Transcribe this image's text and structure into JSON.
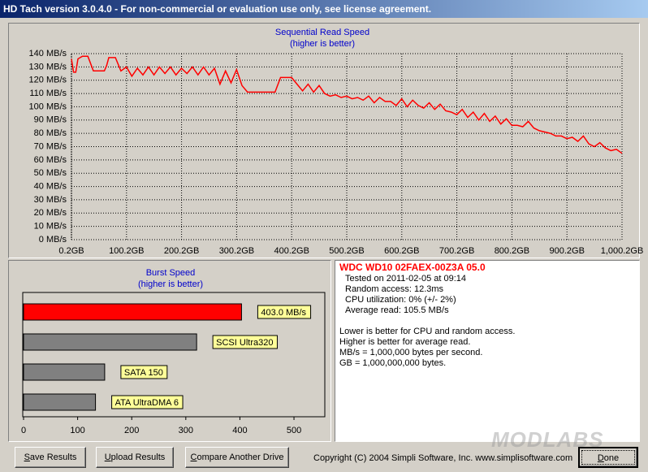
{
  "window": {
    "title": "HD Tach version 3.0.4.0  - For non-commercial or evaluation use only, see license agreement."
  },
  "chart_data": [
    {
      "type": "line",
      "title": "Sequential Read Speed",
      "subtitle": "(higher is better)",
      "x": [
        0.2,
        4,
        8,
        12,
        16,
        20,
        30,
        40,
        50,
        60,
        64,
        68,
        72,
        80,
        90,
        100,
        110,
        120,
        130,
        140,
        150,
        160,
        170,
        180,
        190,
        200,
        210,
        220,
        230,
        240,
        250,
        260,
        270,
        280,
        290,
        300,
        310,
        320,
        330,
        340,
        350,
        360,
        370,
        380,
        390,
        400,
        410,
        420,
        430,
        440,
        450,
        460,
        470,
        480,
        490,
        500,
        510,
        520,
        530,
        540,
        550,
        560,
        570,
        580,
        590,
        600,
        610,
        620,
        630,
        640,
        650,
        660,
        670,
        680,
        690,
        700,
        710,
        720,
        730,
        740,
        750,
        760,
        770,
        780,
        790,
        800,
        810,
        820,
        830,
        840,
        850,
        860,
        870,
        880,
        890,
        900,
        910,
        920,
        930,
        940,
        950,
        960,
        970,
        980,
        990,
        1000.2
      ],
      "values": [
        136,
        126,
        126,
        136,
        137,
        138,
        138,
        127,
        127,
        127,
        131,
        137,
        137,
        137,
        127,
        130,
        123,
        129,
        124,
        130,
        124,
        130,
        125,
        130,
        124,
        129,
        125,
        130,
        124,
        130,
        124,
        129,
        117,
        127,
        118,
        128,
        116,
        111,
        111,
        111,
        111,
        111,
        111,
        122,
        122,
        122,
        117,
        112,
        117,
        111,
        116,
        110,
        108,
        109,
        107,
        108,
        106,
        107,
        105,
        108,
        103,
        107,
        104,
        104,
        101,
        106,
        100,
        105,
        101,
        99,
        103,
        98,
        102,
        97,
        96,
        94,
        98,
        92,
        96,
        90,
        95,
        89,
        93,
        87,
        91,
        86,
        86,
        85,
        89,
        84,
        82,
        81,
        80,
        78,
        78,
        76,
        77,
        74,
        78,
        72,
        70,
        73,
        69,
        67,
        68,
        65
      ],
      "color": "#ff0000",
      "xlim": [
        0.2,
        1000.2
      ],
      "xticks": [
        {
          "value": 0.2,
          "label": "0.2GB"
        },
        {
          "value": 100.2,
          "label": "100.2GB"
        },
        {
          "value": 200.2,
          "label": "200.2GB"
        },
        {
          "value": 300.2,
          "label": "300.2GB"
        },
        {
          "value": 400.2,
          "label": "400.2GB"
        },
        {
          "value": 500.2,
          "label": "500.2GB"
        },
        {
          "value": 600.2,
          "label": "600.2GB"
        },
        {
          "value": 700.2,
          "label": "700.2GB"
        },
        {
          "value": 800.2,
          "label": "800.2GB"
        },
        {
          "value": 900.2,
          "label": "900.2GB"
        },
        {
          "value": 1000.2,
          "label": "1,000.2GB"
        }
      ],
      "ylim": [
        0,
        140
      ],
      "yticks": [
        {
          "value": 0,
          "label": "0 MB/s"
        },
        {
          "value": 10,
          "label": "10 MB/s"
        },
        {
          "value": 20,
          "label": "20 MB/s"
        },
        {
          "value": 30,
          "label": "30 MB/s"
        },
        {
          "value": 40,
          "label": "40 MB/s"
        },
        {
          "value": 50,
          "label": "50 MB/s"
        },
        {
          "value": 60,
          "label": "60 MB/s"
        },
        {
          "value": 70,
          "label": "70 MB/s"
        },
        {
          "value": 80,
          "label": "80 MB/s"
        },
        {
          "value": 90,
          "label": "90 MB/s"
        },
        {
          "value": 100,
          "label": "100 MB/s"
        },
        {
          "value": 110,
          "label": "110 MB/s"
        },
        {
          "value": 120,
          "label": "120 MB/s"
        },
        {
          "value": 130,
          "label": "130 MB/s"
        },
        {
          "value": 140,
          "label": "140 MB/s"
        }
      ],
      "grid": true
    },
    {
      "type": "hbar",
      "title": "Burst Speed",
      "subtitle": "(higher is better)",
      "categories": [
        null,
        "SCSI Ultra320",
        "SATA 150",
        "ATA UltraDMA 6"
      ],
      "values": [
        403,
        320,
        150,
        133
      ],
      "value_labels": [
        "403.0 MB/s",
        null,
        null,
        null
      ],
      "colors": [
        "#ff0000",
        "#808080",
        "#808080",
        "#808080"
      ],
      "xlim": [
        0,
        557
      ],
      "xticks": [
        0,
        100,
        200,
        300,
        400,
        500
      ]
    }
  ],
  "info": {
    "drive": "WDC WD10 02FAEX-00Z3A 05.0",
    "lines": [
      "Tested on 2011-02-05 at 09:14",
      "Random access: 12.3ms",
      "CPU utilization: 0% (+/- 2%)",
      "Average read: 105.5 MB/s"
    ],
    "notes": [
      "Lower is better for CPU and random access.",
      "Higher is better for average read.",
      "MB/s = 1,000,000 bytes per second.",
      "GB = 1,000,000,000 bytes."
    ]
  },
  "buttons": [
    "Save Results",
    "Upload Results",
    "Compare Another Drive",
    "Done"
  ],
  "copyright": "Copyright (C) 2004 Simpli Software, Inc. www.simplisoftware.com",
  "watermark": "MODLABS"
}
